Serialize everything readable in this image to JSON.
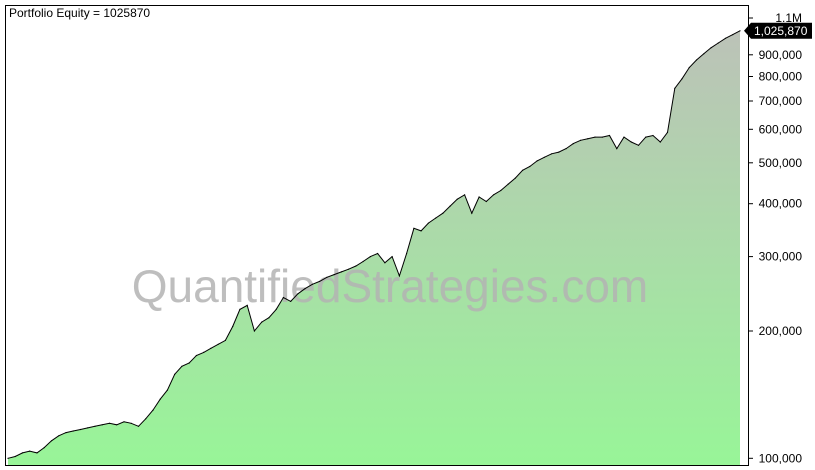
{
  "title": "Portfolio Equity = 1025870",
  "watermark": "QuantifiedStrategies.com",
  "last_value_label": "1,025,870",
  "colors": {
    "fill_top": "#bcc2b8",
    "fill_bottom": "#98f598",
    "line": "#000000",
    "frame": "#000000",
    "badge": "#000000",
    "watermark": "#b3b3b3"
  },
  "chart_data": {
    "type": "area",
    "scale": "log",
    "title": "Portfolio Equity = 1025870",
    "ylim": [
      98000,
      1100000
    ],
    "yticks": [
      {
        "value": 1100000,
        "label": "1.1M"
      },
      {
        "value": 900000,
        "label": "900,000"
      },
      {
        "value": 800000,
        "label": "800,000"
      },
      {
        "value": 700000,
        "label": "700,000"
      },
      {
        "value": 600000,
        "label": "600,000"
      },
      {
        "value": 500000,
        "label": "500,000"
      },
      {
        "value": 400000,
        "label": "400,000"
      },
      {
        "value": 300000,
        "label": "300,000"
      },
      {
        "value": 200000,
        "label": "200,000"
      },
      {
        "value": 100000,
        "label": "100,000"
      }
    ],
    "grid": false,
    "legend": "none",
    "series": [
      {
        "values": [
          100000,
          101000,
          103000,
          104000,
          103000,
          106000,
          110000,
          113000,
          115000,
          116000,
          117000,
          118000,
          119000,
          120000,
          121000,
          120000,
          122000,
          121000,
          119000,
          124000,
          130000,
          138000,
          145000,
          158000,
          165000,
          168000,
          175000,
          178000,
          182000,
          186000,
          190000,
          205000,
          225000,
          230000,
          200000,
          210000,
          215000,
          225000,
          240000,
          235000,
          245000,
          252000,
          258000,
          262000,
          268000,
          272000,
          276000,
          280000,
          285000,
          292000,
          300000,
          305000,
          290000,
          300000,
          270000,
          305000,
          350000,
          345000,
          360000,
          370000,
          380000,
          395000,
          410000,
          420000,
          380000,
          415000,
          405000,
          420000,
          430000,
          445000,
          460000,
          480000,
          490000,
          505000,
          515000,
          525000,
          530000,
          540000,
          555000,
          565000,
          570000,
          575000,
          575000,
          580000,
          540000,
          575000,
          560000,
          550000,
          575000,
          580000,
          560000,
          590000,
          750000,
          790000,
          840000,
          875000,
          905000,
          935000,
          960000,
          985000,
          1005000,
          1025870
        ]
      }
    ]
  }
}
